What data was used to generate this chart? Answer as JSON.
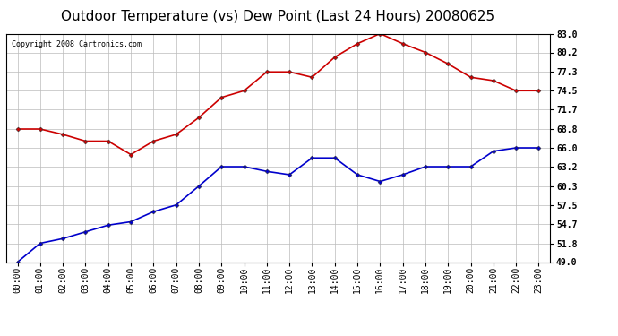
{
  "title": "Outdoor Temperature (vs) Dew Point (Last 24 Hours) 20080625",
  "copyright": "Copyright 2008 Cartronics.com",
  "hours": [
    "00:00",
    "01:00",
    "02:00",
    "03:00",
    "04:00",
    "05:00",
    "06:00",
    "07:00",
    "08:00",
    "09:00",
    "10:00",
    "11:00",
    "12:00",
    "13:00",
    "14:00",
    "15:00",
    "16:00",
    "17:00",
    "18:00",
    "19:00",
    "20:00",
    "21:00",
    "22:00",
    "23:00"
  ],
  "temp": [
    68.8,
    68.8,
    68.0,
    67.0,
    67.0,
    65.0,
    67.0,
    68.0,
    70.5,
    73.5,
    74.5,
    77.3,
    77.3,
    76.5,
    79.5,
    81.5,
    83.0,
    81.5,
    80.2,
    78.5,
    76.5,
    76.0,
    74.5,
    74.5
  ],
  "dew": [
    49.0,
    51.8,
    52.5,
    53.5,
    54.5,
    55.0,
    56.5,
    57.5,
    60.3,
    63.2,
    63.2,
    62.5,
    62.0,
    64.5,
    64.5,
    62.0,
    61.0,
    62.0,
    63.2,
    63.2,
    63.2,
    65.5,
    66.0,
    66.0
  ],
  "temp_color": "#cc0000",
  "dew_color": "#0000cc",
  "bg_color": "#ffffff",
  "plot_bg_color": "#ffffff",
  "grid_color": "#bbbbbb",
  "yticks": [
    49.0,
    51.8,
    54.7,
    57.5,
    60.3,
    63.2,
    66.0,
    68.8,
    71.7,
    74.5,
    77.3,
    80.2,
    83.0
  ],
  "ytick_labels": [
    "49.0",
    "51.8",
    "54.7",
    "57.5",
    "60.3",
    "63.2",
    "66.0",
    "68.8",
    "71.7",
    "74.5",
    "77.3",
    "80.2",
    "83.0"
  ],
  "ymin": 49.0,
  "ymax": 83.0,
  "title_fontsize": 11,
  "copyright_fontsize": 6,
  "tick_fontsize": 7,
  "marker": "D",
  "marker_size": 2.5,
  "line_width": 1.2
}
